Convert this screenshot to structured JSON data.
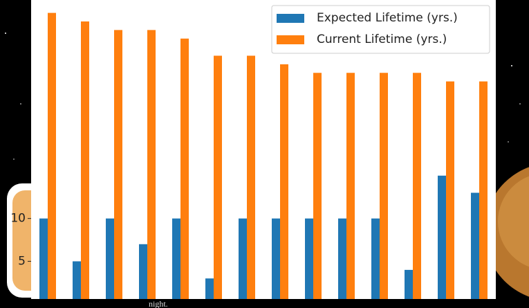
{
  "chart_data": {
    "type": "bar",
    "categories": [
      null,
      null,
      null,
      null,
      null,
      null,
      null,
      null,
      null,
      null,
      null,
      null,
      null,
      null
    ],
    "series": [
      {
        "name": "Expected Lifetime (yrs.)",
        "color": "#1f77b4",
        "values": [
          10,
          5,
          10,
          7,
          10,
          3,
          10,
          10,
          10,
          10,
          10,
          4,
          15,
          13
        ]
      },
      {
        "name": "Current Lifetime (yrs.)",
        "color": "#ff7f0e",
        "values": [
          34,
          33,
          32,
          32,
          31,
          29,
          29,
          28,
          27,
          27,
          27,
          27,
          26,
          26
        ]
      }
    ],
    "ylim": [
      0.6,
      35.1
    ],
    "yticks": [
      5,
      10
    ],
    "grid": false,
    "legend": "upper right"
  },
  "background_text": "night."
}
